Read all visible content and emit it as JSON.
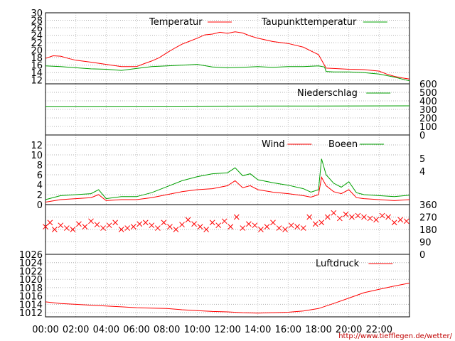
{
  "chart_data": [
    {
      "type": "line",
      "panel": "temperature",
      "y_ticks": [
        "30",
        "28",
        "26",
        "24",
        "22",
        "20",
        "18",
        "16",
        "14",
        "12"
      ],
      "ylim": [
        11,
        30
      ],
      "x_range_hours": [
        0,
        24
      ],
      "grid": true,
      "legend_position": "top",
      "series": [
        {
          "name": "Temperatur",
          "color": "#ff0000",
          "x": [
            0,
            0.5,
            1,
            1.5,
            2,
            3,
            4,
            5,
            6,
            6.5,
            7,
            7.5,
            8,
            8.5,
            9,
            9.5,
            10,
            10.5,
            11,
            11.5,
            12,
            12.5,
            13,
            13.5,
            14,
            15,
            16,
            17,
            17.5,
            18,
            18.5,
            19,
            20,
            21,
            22,
            22.5,
            23,
            23.5,
            24
          ],
          "y": [
            17.8,
            18.5,
            18.4,
            17.8,
            17.3,
            16.8,
            16.2,
            15.6,
            15.6,
            16.4,
            17.1,
            18.0,
            19.3,
            20.5,
            21.6,
            22.4,
            23.2,
            24.1,
            24.3,
            24.8,
            24.5,
            24.9,
            24.6,
            23.8,
            23.2,
            22.3,
            21.8,
            20.8,
            19.8,
            18.8,
            15.2,
            15.1,
            14.9,
            14.8,
            14.4,
            13.6,
            13.0,
            12.6,
            12.3
          ]
        },
        {
          "name": "Taupunkttemperatur",
          "color": "#00a000",
          "x": [
            0,
            1,
            2,
            3,
            4,
            5,
            6,
            7,
            8,
            9,
            10,
            11,
            12,
            13,
            14,
            15,
            16,
            17,
            18,
            18.4,
            18.5,
            19,
            20,
            21,
            22,
            23,
            23.5,
            24
          ],
          "y": [
            15.8,
            15.6,
            15.3,
            15.0,
            14.9,
            14.6,
            15.1,
            15.6,
            15.8,
            16.0,
            16.2,
            15.5,
            15.3,
            15.4,
            15.6,
            15.4,
            15.6,
            15.6,
            15.8,
            15.5,
            14.3,
            14.2,
            14.2,
            14.0,
            13.6,
            12.8,
            12.3,
            11.8
          ]
        }
      ]
    },
    {
      "type": "line",
      "panel": "precipitation",
      "y_ticks": [
        "600",
        "500",
        "400",
        "300",
        "200",
        "100",
        "0"
      ],
      "ylim": [
        0,
        600
      ],
      "x_range_hours": [
        0,
        24
      ],
      "grid": true,
      "legend_position": "top-right",
      "series": [
        {
          "name": "Niederschlag",
          "color": "#00a000",
          "x": [
            0,
            18,
            24
          ],
          "y": [
            335,
            340,
            342
          ]
        }
      ]
    },
    {
      "type": "line",
      "panel": "wind",
      "y_ticks": [
        "12",
        "10",
        "8",
        "6",
        "4",
        "2",
        "0"
      ],
      "y_ticks_right": [
        "5",
        "4"
      ],
      "ylim": [
        0,
        14
      ],
      "x_range_hours": [
        0,
        24
      ],
      "grid": true,
      "legend_position": "top",
      "series": [
        {
          "name": "Wind",
          "color": "#ff0000",
          "x": [
            0,
            1,
            2,
            3,
            3.5,
            4,
            5,
            6,
            7,
            8,
            9,
            10,
            11,
            12,
            12.5,
            13,
            13.5,
            14,
            15,
            16,
            17,
            17.5,
            18,
            18.2,
            18.5,
            19,
            19.5,
            20,
            20.5,
            21,
            22,
            23,
            24
          ],
          "y": [
            0.5,
            1.0,
            1.2,
            1.4,
            2.0,
            0.8,
            1.0,
            1.0,
            1.4,
            2.0,
            2.6,
            3.0,
            3.2,
            3.8,
            4.8,
            3.4,
            3.8,
            3.0,
            2.5,
            2.2,
            1.8,
            1.5,
            2.0,
            5.5,
            3.8,
            2.6,
            2.2,
            3.0,
            1.4,
            1.2,
            1.0,
            0.8,
            1.0
          ]
        },
        {
          "name": "Boeen",
          "color": "#00a000",
          "x": [
            0,
            1,
            2,
            3,
            3.5,
            4,
            5,
            6,
            7,
            8,
            9,
            10,
            11,
            12,
            12.5,
            13,
            13.5,
            14,
            15,
            16,
            17,
            17.5,
            18,
            18.2,
            18.5,
            19,
            19.5,
            20,
            20.5,
            21,
            22,
            23,
            24
          ],
          "y": [
            1.0,
            1.8,
            2.0,
            2.2,
            3.0,
            1.2,
            1.6,
            1.6,
            2.4,
            3.6,
            4.8,
            5.6,
            6.2,
            6.4,
            7.4,
            5.8,
            6.2,
            5.0,
            4.4,
            3.9,
            3.2,
            2.5,
            3.0,
            9.2,
            6.0,
            4.3,
            3.5,
            4.6,
            2.4,
            2.0,
            1.8,
            1.6,
            1.9
          ]
        }
      ]
    },
    {
      "type": "scatter",
      "panel": "wind_direction",
      "y_ticks": [
        "360",
        "270",
        "180",
        "90",
        "0"
      ],
      "ylim": [
        0,
        360
      ],
      "x_range_hours": [
        0,
        24
      ],
      "grid": true,
      "marker": "x",
      "series": [
        {
          "color": "#ff0000",
          "x": [
            0,
            0.3,
            0.6,
            1.0,
            1.4,
            1.8,
            2.2,
            2.6,
            3.0,
            3.4,
            3.8,
            4.2,
            4.6,
            5.0,
            5.4,
            5.8,
            6.2,
            6.6,
            7.0,
            7.4,
            7.8,
            8.2,
            8.6,
            9.0,
            9.4,
            9.8,
            10.2,
            10.6,
            11.0,
            11.4,
            11.8,
            12.2,
            12.6,
            13.0,
            13.4,
            13.8,
            14.2,
            14.6,
            15.0,
            15.4,
            15.8,
            16.2,
            16.6,
            17.0,
            17.4,
            17.8,
            18.2,
            18.6,
            19.0,
            19.4,
            19.8,
            20.2,
            20.6,
            21.0,
            21.4,
            21.8,
            22.2,
            22.6,
            23.0,
            23.4,
            23.8
          ],
          "y": [
            200,
            230,
            180,
            210,
            190,
            180,
            220,
            200,
            240,
            215,
            190,
            210,
            230,
            180,
            190,
            200,
            220,
            230,
            210,
            190,
            230,
            200,
            180,
            215,
            250,
            220,
            200,
            180,
            230,
            210,
            240,
            200,
            270,
            190,
            220,
            210,
            180,
            200,
            230,
            190,
            180,
            210,
            200,
            190,
            270,
            220,
            230,
            270,
            300,
            260,
            290,
            270,
            280,
            270,
            260,
            250,
            280,
            270,
            230,
            250,
            240
          ]
        }
      ]
    },
    {
      "type": "line",
      "panel": "pressure",
      "y_ticks": [
        "1026",
        "1024",
        "1022",
        "1020",
        "1018",
        "1016",
        "1014",
        "1012"
      ],
      "ylim": [
        1011,
        1026
      ],
      "x_range_hours": [
        0,
        24
      ],
      "grid": true,
      "legend_position": "top-right",
      "series": [
        {
          "name": "Luftdruck",
          "color": "#ff0000",
          "x": [
            0,
            1,
            2,
            3,
            4,
            5,
            6,
            7,
            8,
            9,
            10,
            11,
            12,
            13,
            14,
            15,
            16,
            17,
            18,
            19,
            20,
            21,
            22,
            23,
            24
          ],
          "y": [
            1014.6,
            1014.2,
            1014.0,
            1013.8,
            1013.6,
            1013.4,
            1013.2,
            1013.1,
            1013.0,
            1012.7,
            1012.5,
            1012.3,
            1012.2,
            1012.0,
            1011.9,
            1012.0,
            1012.1,
            1012.4,
            1013.0,
            1014.2,
            1015.5,
            1016.8,
            1017.6,
            1018.4,
            1019.1
          ]
        }
      ]
    }
  ],
  "x_tick_labels": [
    "00:00",
    "02:00",
    "04:00",
    "06:00",
    "08:00",
    "10:00",
    "12:00",
    "14:00",
    "16:00",
    "18:00",
    "20:00",
    "22:00"
  ],
  "credit": "http://www.tiefflegen.de/wetter/"
}
